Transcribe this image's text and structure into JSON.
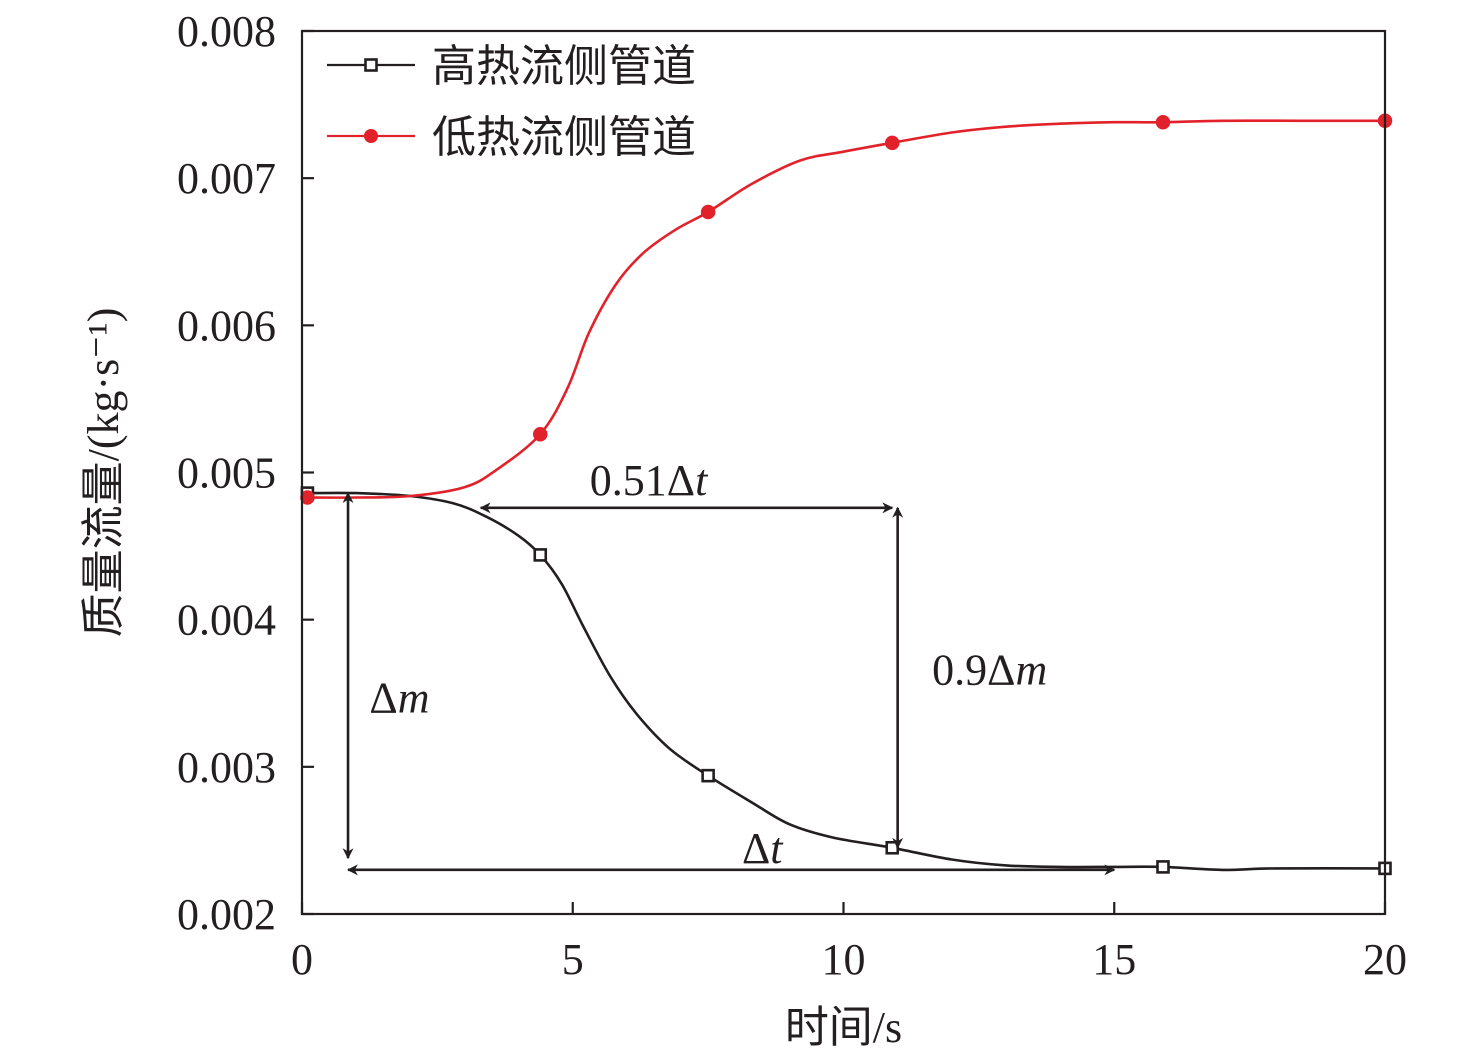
{
  "chart_data": {
    "type": "line",
    "title": "",
    "xlabel": "时间/s",
    "ylabel": "质量流量/(kg·s⁻¹)",
    "xlim": [
      0,
      20
    ],
    "ylim": [
      0.002,
      0.008
    ],
    "xticks": [
      "0",
      "5",
      "10",
      "15",
      "20"
    ],
    "yticks": [
      "0.002",
      "0.003",
      "0.004",
      "0.005",
      "0.006",
      "0.007",
      "0.008"
    ],
    "grid": false,
    "legend": "top-left",
    "series": [
      {
        "name": "高热流侧管道",
        "color": "#231f20",
        "marker": "square-open",
        "markers": [
          [
            0.1,
            0.00486
          ],
          [
            4.4,
            0.00444
          ],
          [
            7.5,
            0.00294
          ],
          [
            10.9,
            0.00245
          ],
          [
            15.9,
            0.00232
          ],
          [
            20.0,
            0.00231
          ]
        ],
        "x": [
          0.1,
          1.0,
          2.0,
          2.8,
          3.4,
          4.0,
          4.4,
          4.8,
          5.2,
          5.7,
          6.2,
          6.8,
          7.5,
          8.3,
          9.0,
          9.8,
          10.9,
          12.0,
          13.0,
          14.0,
          15.0,
          15.9,
          17.0,
          18.0,
          20.0
        ],
        "y": [
          0.00486,
          0.00486,
          0.00484,
          0.00479,
          0.0047,
          0.00457,
          0.00444,
          0.00424,
          0.00395,
          0.00361,
          0.00335,
          0.00312,
          0.00294,
          0.00276,
          0.00261,
          0.00252,
          0.00245,
          0.00237,
          0.00233,
          0.00232,
          0.00232,
          0.00232,
          0.0023,
          0.00231,
          0.00231
        ]
      },
      {
        "name": "低热流侧管道",
        "color": "#e2222b",
        "marker": "circle",
        "markers": [
          [
            0.1,
            0.00483
          ],
          [
            4.4,
            0.00526
          ],
          [
            7.5,
            0.00677
          ],
          [
            10.9,
            0.00724
          ],
          [
            15.9,
            0.00738
          ],
          [
            20.0,
            0.00739
          ]
        ],
        "x": [
          0.1,
          1.0,
          2.0,
          3.0,
          3.6,
          4.4,
          4.9,
          5.3,
          5.8,
          6.3,
          6.9,
          7.5,
          8.3,
          9.2,
          10.0,
          10.9,
          12.0,
          13.0,
          14.0,
          15.0,
          15.9,
          17.0,
          18.5,
          20.0
        ],
        "y": [
          0.00483,
          0.00483,
          0.00484,
          0.0049,
          0.00502,
          0.00526,
          0.00557,
          0.00595,
          0.00628,
          0.00649,
          0.00665,
          0.00677,
          0.00696,
          0.00712,
          0.00718,
          0.00724,
          0.00731,
          0.00735,
          0.00737,
          0.00738,
          0.00738,
          0.00739,
          0.00739,
          0.00739
        ]
      }
    ],
    "annotations": [
      {
        "text": "0.51Δt",
        "type": "double-arrow",
        "from": [
          3.3,
          0.00476
        ],
        "to": [
          10.9,
          0.00476
        ],
        "label_at": [
          6.4,
          0.00495
        ]
      },
      {
        "text": "0.9Δm",
        "type": "double-arrow",
        "from": [
          11.0,
          0.00476
        ],
        "to": [
          11.0,
          0.00245
        ],
        "label_at": [
          12.7,
          0.00366
        ]
      },
      {
        "text": "Δm",
        "type": "double-arrow",
        "from": [
          0.85,
          0.00486
        ],
        "to": [
          0.85,
          0.00238
        ],
        "label_at": [
          1.8,
          0.00347
        ]
      },
      {
        "text": "Δt",
        "type": "double-arrow",
        "from": [
          0.85,
          0.0023
        ],
        "to": [
          15.0,
          0.0023
        ],
        "label_at": [
          8.5,
          0.00245
        ]
      }
    ]
  }
}
